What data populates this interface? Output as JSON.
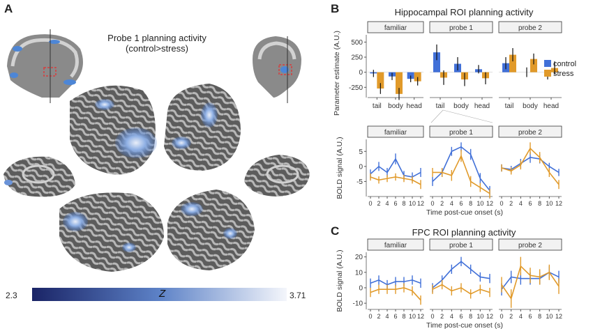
{
  "panel_a": {
    "letter": "A",
    "title_line1": "Probe 1 planning activity",
    "title_line2": "(control>stress)",
    "colorbar": {
      "min_label": "2.3",
      "max_label": "3.71",
      "symbol": "Z",
      "color_low": "#1a2466",
      "color_high": "#f4f6fb"
    }
  },
  "panel_b": {
    "letter": "B",
    "title": "Hippocampal ROI planning activity",
    "legend": [
      {
        "name": "control",
        "color": "#4170d8"
      },
      {
        "name": "stress",
        "color": "#e19a2a"
      }
    ]
  },
  "panel_c": {
    "letter": "C",
    "title": "FPC ROI planning activity"
  },
  "chart_data": [
    {
      "type": "bar",
      "facets": [
        "familiar",
        "probe 1",
        "probe 2"
      ],
      "categories": [
        "tail",
        "body",
        "head"
      ],
      "ylabel": "Parameter estimate (A.U.)",
      "ylim": [
        -420,
        620
      ],
      "yticks": [
        -250,
        0,
        250,
        500
      ],
      "series": [
        {
          "name": "control",
          "color": "#4170d8",
          "values": [
            [
              -20,
              -70,
              -110
            ],
            [
              330,
              140,
              50
            ],
            [
              150,
              0,
              -60
            ]
          ],
          "errors": [
            [
              60,
              60,
              55
            ],
            [
              130,
              110,
              70
            ],
            [
              100,
              80,
              60
            ]
          ]
        },
        {
          "name": "stress",
          "color": "#e19a2a",
          "values": [
            [
              -270,
              -360,
              -150
            ],
            [
              -90,
              -120,
              -100
            ],
            [
              290,
              220,
              70
            ]
          ],
          "errors": [
            [
              90,
              100,
              70
            ],
            [
              120,
              110,
              100
            ],
            [
              110,
              90,
              110
            ]
          ]
        }
      ]
    },
    {
      "type": "line",
      "facets": [
        "familiar",
        "probe 1",
        "probe 2"
      ],
      "x": [
        0,
        2,
        4,
        6,
        8,
        10,
        12
      ],
      "xlabel": "Time post-cue onset (s)",
      "ylabel": "BOLD signal (A.U.)",
      "ylim": [
        -10,
        9
      ],
      "yticks": [
        -5,
        0,
        5
      ],
      "series": [
        {
          "name": "control",
          "color": "#4170d8",
          "values": [
            [
              -2.5,
              0,
              -2,
              2.5,
              -3,
              -3.5,
              -2
            ],
            [
              -5,
              -2,
              5,
              6.5,
              4,
              -4,
              -8
            ],
            [
              -0.5,
              -1,
              1,
              3,
              2.5,
              0,
              -2
            ]
          ],
          "errors": [
            [
              1.5,
              1.5,
              1.5,
              1.8,
              1.5,
              1.5,
              1.5
            ],
            [
              1.5,
              1.5,
              1.5,
              1.5,
              1.8,
              1.8,
              1.5
            ],
            [
              1.2,
              1.2,
              1.5,
              1.8,
              1.5,
              1.2,
              1.2
            ]
          ]
        },
        {
          "name": "stress",
          "color": "#e19a2a",
          "values": [
            [
              -3.5,
              -4.5,
              -4,
              -3.5,
              -4,
              -4.5,
              -6
            ],
            [
              -2,
              -2,
              -3,
              3.5,
              -5,
              -7,
              -9
            ],
            [
              -0.5,
              -1.5,
              0.5,
              6,
              3,
              -2,
              -6
            ]
          ],
          "errors": [
            [
              1.2,
              1.2,
              1.2,
              1.2,
              1.2,
              1.2,
              1.5
            ],
            [
              1.5,
              1.5,
              1.8,
              2,
              1.8,
              1.5,
              1.5
            ],
            [
              1.2,
              1.2,
              1.5,
              2,
              1.8,
              1.5,
              1.5
            ]
          ]
        }
      ]
    },
    {
      "type": "line",
      "facets": [
        "familiar",
        "probe 1",
        "probe 2"
      ],
      "x": [
        0,
        2,
        4,
        6,
        8,
        10,
        12
      ],
      "xlabel": "Time post-cue onset (s)",
      "ylabel": "BOLD signal (A.U.)",
      "ylim": [
        -14,
        23
      ],
      "yticks": [
        -10,
        0,
        10,
        20
      ],
      "series": [
        {
          "name": "control",
          "color": "#4170d8",
          "values": [
            [
              3,
              5,
              2,
              4,
              4,
              5,
              3
            ],
            [
              0,
              5,
              12,
              17,
              12,
              7,
              6
            ],
            [
              -1,
              7,
              6,
              6,
              6,
              10,
              7
            ]
          ],
          "errors": [
            [
              3,
              3,
              3,
              3,
              3,
              3,
              3
            ],
            [
              3,
              3,
              3,
              3,
              3,
              3,
              3
            ],
            [
              4,
              4,
              4,
              4,
              4,
              4,
              4
            ]
          ]
        },
        {
          "name": "stress",
          "color": "#e19a2a",
          "values": [
            [
              -3,
              -1,
              -1,
              -1,
              0,
              -2,
              -8
            ],
            [
              -1,
              2,
              -2,
              0,
              -4,
              -1,
              -3
            ],
            [
              2,
              -7,
              14,
              8,
              7,
              10,
              1
            ]
          ],
          "errors": [
            [
              3,
              3,
              3,
              3,
              3,
              3,
              3
            ],
            [
              3,
              3,
              3,
              3,
              3,
              3,
              3
            ],
            [
              5,
              6,
              6,
              5,
              5,
              5,
              5
            ]
          ]
        }
      ]
    }
  ]
}
